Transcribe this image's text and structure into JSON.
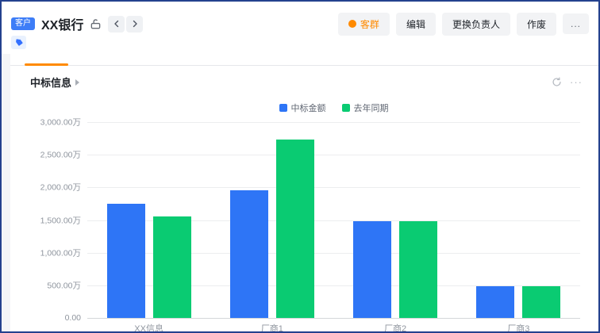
{
  "colors": {
    "accent_orange": "#FF8A00",
    "badge_blue": "#3D7DF7",
    "tag_blue": "#3370FF",
    "icon_gray": "#646a73"
  },
  "header": {
    "entity_badge": "客户",
    "title": "XX银行"
  },
  "toolbar": {
    "group_label": "客群",
    "edit_label": "编辑",
    "change_owner_label": "更换负责人",
    "void_label": "作废",
    "more_label": "..."
  },
  "section": {
    "title": "中标信息"
  },
  "chart_data": {
    "type": "bar",
    "title": "中标信息",
    "categories": [
      "XX信息",
      "厂商1",
      "厂商2",
      "厂商3"
    ],
    "series": [
      {
        "name": "中标金额",
        "color": "#2E75F6",
        "values": [
          1750,
          1950,
          1480,
          480
        ]
      },
      {
        "name": "去年同期",
        "color": "#0ACB72",
        "values": [
          1550,
          2730,
          1480,
          480
        ]
      }
    ],
    "unit": "万",
    "ylim": [
      0,
      3000
    ],
    "y_ticks": [
      {
        "value": 3000,
        "label": "3,000.00万"
      },
      {
        "value": 2500,
        "label": "2,500.00万"
      },
      {
        "value": 2000,
        "label": "2,000.00万"
      },
      {
        "value": 1500,
        "label": "1,500.00万"
      },
      {
        "value": 1000,
        "label": "1,000.00万"
      },
      {
        "value": 500,
        "label": "500.00万"
      },
      {
        "value": 0,
        "label": "0.00"
      }
    ],
    "grid": true,
    "legend_position": "top-center"
  }
}
